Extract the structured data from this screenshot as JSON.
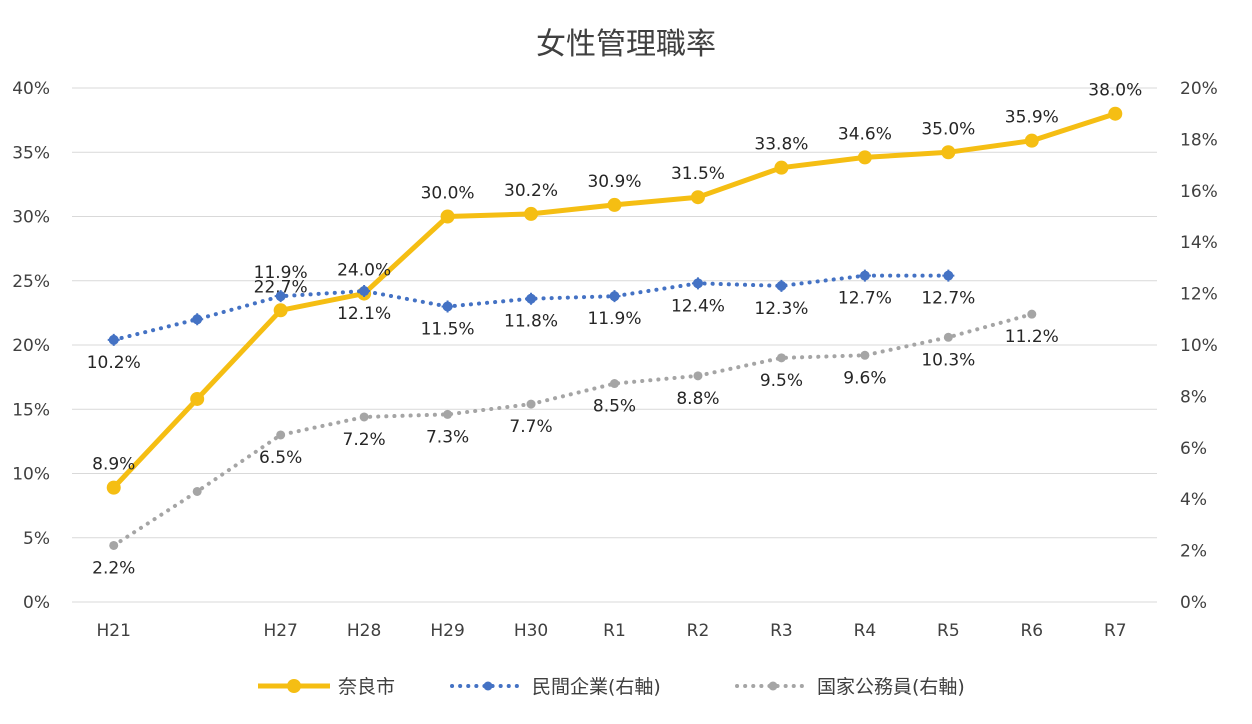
{
  "chart_data": {
    "type": "line",
    "title": "女性管理職率",
    "categories": [
      "H21",
      "",
      "H27",
      "H28",
      "H29",
      "H30",
      "R1",
      "R2",
      "R3",
      "R4",
      "R5",
      "R6",
      "R7"
    ],
    "left_axis": {
      "ylim": [
        0,
        40
      ],
      "ticks": [
        "0%",
        "5%",
        "10%",
        "15%",
        "20%",
        "25%",
        "30%",
        "35%",
        "40%"
      ]
    },
    "right_axis": {
      "ylim": [
        0,
        20
      ],
      "ticks": [
        "0%",
        "2%",
        "4%",
        "6%",
        "8%",
        "10%",
        "12%",
        "14%",
        "16%",
        "18%",
        "20%"
      ]
    },
    "grid": true,
    "legend_position": "bottom",
    "series": [
      {
        "name": "奈良市",
        "axis": "left",
        "color": "#F5BE13",
        "style": "solid",
        "values": [
          8.9,
          15.8,
          22.7,
          24.0,
          30.0,
          30.2,
          30.9,
          31.5,
          33.8,
          34.6,
          35.0,
          35.9,
          38.0
        ],
        "labels": [
          "8.9%",
          "",
          "22.7%",
          "24.0%",
          "30.0%",
          "30.2%",
          "30.9%",
          "31.5%",
          "33.8%",
          "34.6%",
          "35.0%",
          "35.9%",
          "38.0%"
        ]
      },
      {
        "name": "民間企業(右軸)",
        "axis": "right",
        "color": "#4472C4",
        "style": "dotted",
        "values": [
          10.2,
          11.0,
          11.9,
          12.1,
          11.5,
          11.8,
          11.9,
          12.4,
          12.3,
          12.7,
          12.7,
          null,
          null
        ],
        "labels": [
          "10.2%",
          "",
          "11.9%",
          "12.1%",
          "11.5%",
          "11.8%",
          "11.9%",
          "12.4%",
          "12.3%",
          "12.7%",
          "12.7%",
          "",
          ""
        ]
      },
      {
        "name": "国家公務員(右軸)",
        "axis": "right",
        "color": "#A5A5A5",
        "style": "dotted",
        "values": [
          2.2,
          4.3,
          6.5,
          7.2,
          7.3,
          7.7,
          8.5,
          8.8,
          9.5,
          9.6,
          10.3,
          11.2,
          null
        ],
        "labels": [
          "2.2%",
          "",
          "6.5%",
          "7.2%",
          "7.3%",
          "7.7%",
          "8.5%",
          "8.8%",
          "9.5%",
          "9.6%",
          "10.3%",
          "11.2%",
          ""
        ]
      }
    ]
  }
}
